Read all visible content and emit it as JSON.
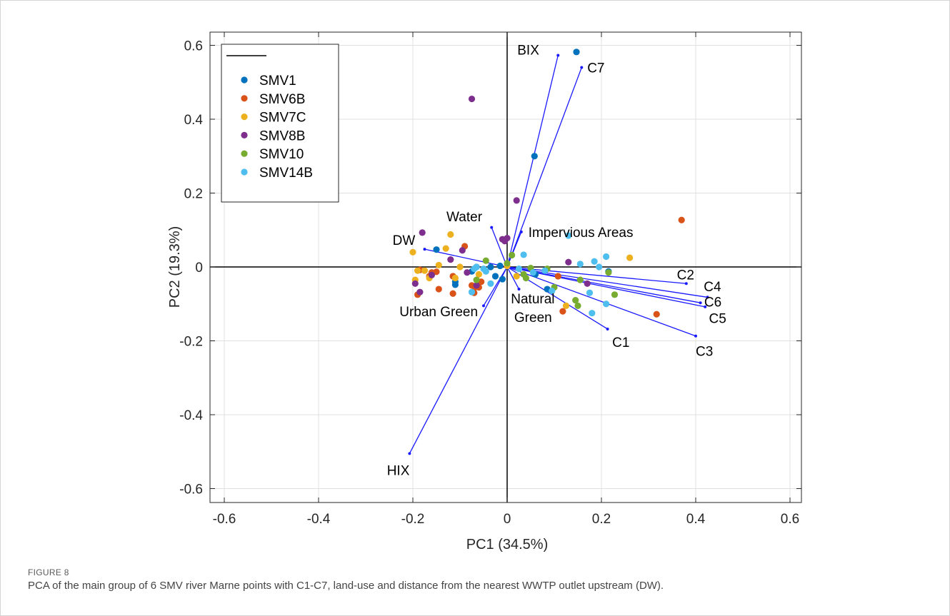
{
  "figure": {
    "label": "FIGURE 8",
    "caption": "PCA of the main group of 6 SMV river Marne points with C1-C7, land-use and distance from the nearest WWTP outlet upstream (DW)."
  },
  "colors": {
    "vector": "#1a1aff",
    "axis": "#000000",
    "grid": "#e0e0e0"
  },
  "chart_data": {
    "type": "scatter",
    "xlabel": "PC1 (34.5%)",
    "ylabel": "PC2 (19.3%)",
    "xlim": [
      -0.65,
      0.65
    ],
    "ylim": [
      -0.64,
      0.63
    ],
    "xticks": [
      -0.6,
      -0.4,
      -0.2,
      0,
      0.2,
      0.4,
      0.6
    ],
    "yticks": [
      -0.6,
      -0.4,
      -0.2,
      0,
      0.2,
      0.4,
      0.6
    ],
    "grid": true,
    "legend_position": "top-left",
    "series": [
      {
        "name": "SMV1",
        "color": "#0072bd",
        "points": [
          [
            0.147,
            0.582
          ],
          [
            0.058,
            0.3
          ],
          [
            -0.15,
            0.047
          ],
          [
            -0.11,
            -0.04
          ],
          [
            -0.11,
            -0.048
          ],
          [
            -0.075,
            -0.012
          ],
          [
            -0.065,
            0.0
          ],
          [
            -0.035,
            0.0
          ],
          [
            -0.025,
            -0.025
          ],
          [
            -0.015,
            0.003
          ],
          [
            -0.01,
            -0.033
          ],
          [
            0.085,
            -0.06
          ],
          [
            0.215,
            -0.012
          ],
          [
            0.06,
            -0.02
          ]
        ]
      },
      {
        "name": "SMV6B",
        "color": "#d95319",
        "points": [
          [
            0.37,
            0.127
          ],
          [
            0.317,
            -0.128
          ],
          [
            0.108,
            -0.025
          ],
          [
            0.118,
            -0.12
          ],
          [
            -0.19,
            -0.075
          ],
          [
            -0.185,
            -0.008
          ],
          [
            -0.165,
            -0.025
          ],
          [
            -0.16,
            -0.015
          ],
          [
            -0.15,
            -0.013
          ],
          [
            -0.145,
            -0.06
          ],
          [
            -0.115,
            -0.025
          ],
          [
            -0.115,
            -0.072
          ],
          [
            -0.09,
            0.056
          ],
          [
            -0.075,
            -0.05
          ],
          [
            -0.068,
            -0.055
          ],
          [
            -0.07,
            -0.07
          ],
          [
            -0.06,
            -0.055
          ],
          [
            -0.055,
            -0.04
          ]
        ]
      },
      {
        "name": "SMV7C",
        "color": "#edb120",
        "points": [
          [
            0.26,
            0.025
          ],
          [
            0.125,
            -0.105
          ],
          [
            -0.2,
            0.04
          ],
          [
            -0.19,
            -0.01
          ],
          [
            -0.195,
            -0.035
          ],
          [
            -0.175,
            -0.01
          ],
          [
            -0.165,
            -0.03
          ],
          [
            -0.13,
            0.05
          ],
          [
            -0.145,
            0.005
          ],
          [
            -0.12,
            0.088
          ],
          [
            -0.11,
            -0.03
          ],
          [
            -0.1,
            0.0
          ],
          [
            -0.06,
            -0.02
          ],
          [
            0.0,
            0.003
          ],
          [
            0.02,
            -0.025
          ]
        ]
      },
      {
        "name": "SMV8B",
        "color": "#7e2f8e",
        "points": [
          [
            -0.075,
            0.455
          ],
          [
            0.02,
            0.18
          ],
          [
            -0.18,
            0.093
          ],
          [
            -0.095,
            0.045
          ],
          [
            -0.12,
            0.02
          ],
          [
            -0.185,
            -0.068
          ],
          [
            -0.195,
            -0.045
          ],
          [
            -0.16,
            -0.022
          ],
          [
            -0.085,
            -0.015
          ],
          [
            -0.065,
            -0.05
          ],
          [
            0.13,
            0.013
          ],
          [
            0.17,
            -0.045
          ],
          [
            -0.01,
            0.075
          ],
          [
            -0.005,
            0.07
          ],
          [
            0.0,
            0.078
          ]
        ]
      },
      {
        "name": "SMV10",
        "color": "#77ac30",
        "points": [
          [
            0.228,
            -0.075
          ],
          [
            0.215,
            -0.015
          ],
          [
            0.15,
            -0.105
          ],
          [
            0.145,
            -0.09
          ],
          [
            0.155,
            -0.035
          ],
          [
            0.1,
            -0.055
          ],
          [
            0.085,
            -0.005
          ],
          [
            0.05,
            -0.003
          ],
          [
            0.035,
            -0.02
          ],
          [
            0.04,
            -0.03
          ],
          [
            0.01,
            0.032
          ],
          [
            0.0,
            0.01
          ],
          [
            -0.045,
            0.017
          ],
          [
            -0.065,
            -0.035
          ]
        ]
      },
      {
        "name": "SMV14B",
        "color": "#4dbeee",
        "points": [
          [
            0.13,
            0.085
          ],
          [
            0.21,
            0.028
          ],
          [
            0.185,
            0.015
          ],
          [
            0.155,
            0.008
          ],
          [
            0.195,
            0.0
          ],
          [
            0.175,
            -0.07
          ],
          [
            0.21,
            -0.1
          ],
          [
            0.18,
            -0.125
          ],
          [
            0.095,
            -0.065
          ],
          [
            0.08,
            -0.01
          ],
          [
            0.055,
            -0.015
          ],
          [
            0.035,
            0.033
          ],
          [
            0.025,
            -0.005
          ],
          [
            -0.045,
            -0.012
          ],
          [
            -0.07,
            -0.005
          ],
          [
            -0.065,
            0.0
          ],
          [
            -0.05,
            -0.005
          ],
          [
            -0.075,
            -0.068
          ],
          [
            -0.035,
            -0.045
          ]
        ]
      }
    ],
    "vectors": [
      {
        "label": "BIX",
        "x": 0.108,
        "y": 0.573,
        "label_dx": -0.04,
        "label_dy": 0.015,
        "anchor": "end"
      },
      {
        "label": "C7",
        "x": 0.158,
        "y": 0.54,
        "label_dx": 0.012,
        "label_dy": 0.0,
        "anchor": "start"
      },
      {
        "label": "Water",
        "x": -0.033,
        "y": 0.107,
        "label_dx": -0.02,
        "label_dy": 0.03,
        "anchor": "end"
      },
      {
        "label": "Impervious Areas",
        "x": 0.03,
        "y": 0.095,
        "label_dx": 0.015,
        "label_dy": 0.0,
        "anchor": "start"
      },
      {
        "label": "DW",
        "x": -0.175,
        "y": 0.048,
        "label_dx": -0.02,
        "label_dy": 0.025,
        "anchor": "end"
      },
      {
        "label": "C2",
        "x": 0.38,
        "y": -0.045,
        "label_dx": -0.02,
        "label_dy": 0.025,
        "anchor": "start"
      },
      {
        "label": "C4",
        "x": 0.425,
        "y": -0.082,
        "label_dx": -0.008,
        "label_dy": 0.03,
        "anchor": "start"
      },
      {
        "label": "C6",
        "x": 0.41,
        "y": -0.097,
        "label_dx": 0.008,
        "label_dy": 0.003,
        "anchor": "start"
      },
      {
        "label": "C5",
        "x": 0.42,
        "y": -0.108,
        "label_dx": 0.008,
        "label_dy": -0.03,
        "anchor": "start"
      },
      {
        "label": "C1",
        "x": 0.213,
        "y": -0.168,
        "label_dx": 0.01,
        "label_dy": -0.035,
        "anchor": "start"
      },
      {
        "label": "C3",
        "x": 0.4,
        "y": -0.187,
        "label_dx": 0.0,
        "label_dy": -0.04,
        "anchor": "start"
      },
      {
        "label": "Natural",
        "x": 0.025,
        "y": -0.06,
        "label_dx": -0.017,
        "label_dy": -0.025,
        "anchor": "start"
      },
      {
        "label": "Green",
        "x": 0.025,
        "y": -0.06,
        "label_dx": -0.01,
        "label_dy": -0.075,
        "anchor": "start"
      },
      {
        "label": "Urban Green",
        "x": -0.05,
        "y": -0.105,
        "label_dx": -0.012,
        "label_dy": -0.015,
        "anchor": "end"
      },
      {
        "label": "HIX",
        "x": -0.207,
        "y": -0.505,
        "label_dx": 0.0,
        "label_dy": -0.045,
        "anchor": "end"
      }
    ]
  }
}
